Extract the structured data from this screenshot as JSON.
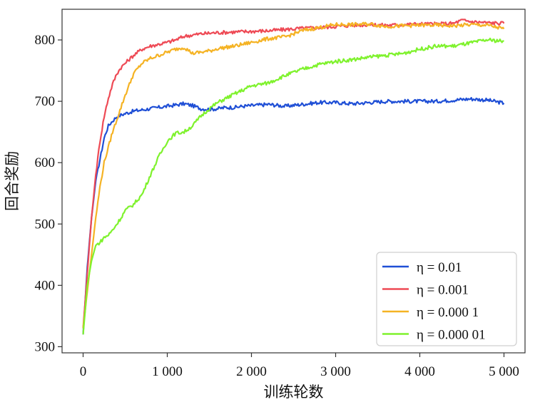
{
  "chart_data": {
    "type": "line",
    "xlabel": "训练轮数",
    "ylabel": "回合奖励",
    "xlim": [
      -250,
      5250
    ],
    "ylim": [
      290,
      850
    ],
    "x_ticks": [
      0,
      1000,
      2000,
      3000,
      4000,
      5000
    ],
    "x_tick_labels": [
      "0",
      "1 000",
      "2 000",
      "3 000",
      "4 000",
      "5 000"
    ],
    "y_ticks": [
      300,
      400,
      500,
      600,
      700,
      800
    ],
    "y_tick_labels": [
      "300",
      "400",
      "500",
      "600",
      "700",
      "800"
    ],
    "grid": false,
    "legend_position": "bottom-right",
    "series": [
      {
        "name": "η = 0.01",
        "color": "#1f4fd6",
        "x": [
          0,
          50,
          100,
          150,
          200,
          250,
          300,
          350,
          400,
          500,
          600,
          700,
          800,
          900,
          1000,
          1100,
          1200,
          1300,
          1400,
          1500,
          1600,
          1700,
          1800,
          1900,
          2000,
          2200,
          2400,
          2600,
          2800,
          3000,
          3200,
          3400,
          3600,
          3800,
          4000,
          4200,
          4400,
          4600,
          4800,
          5000
        ],
        "y": [
          320,
          430,
          510,
          570,
          605,
          640,
          660,
          668,
          675,
          680,
          684,
          686,
          688,
          690,
          692,
          694,
          696,
          693,
          688,
          687,
          688,
          690,
          690,
          692,
          693,
          695,
          692,
          695,
          698,
          698,
          696,
          698,
          700,
          700,
          700,
          700,
          702,
          704,
          702,
          697
        ]
      },
      {
        "name": "η = 0.001",
        "color": "#ee4a55",
        "x": [
          0,
          50,
          100,
          150,
          200,
          250,
          300,
          350,
          400,
          450,
          500,
          600,
          700,
          800,
          900,
          1000,
          1100,
          1200,
          1300,
          1400,
          1500,
          1600,
          1800,
          2000,
          2200,
          2400,
          2600,
          2800,
          3000,
          3200,
          3400,
          3600,
          3800,
          4000,
          4200,
          4400,
          4500,
          4600,
          4800,
          5000
        ],
        "y": [
          330,
          420,
          510,
          580,
          635,
          675,
          705,
          728,
          745,
          755,
          762,
          775,
          785,
          790,
          793,
          796,
          800,
          806,
          808,
          810,
          811,
          812,
          813,
          814,
          815,
          817,
          819,
          820,
          822,
          824,
          825,
          824,
          825,
          826,
          826,
          827,
          832,
          830,
          828,
          827
        ]
      },
      {
        "name": "η = 0.000 1",
        "color": "#f5b324",
        "x": [
          0,
          50,
          100,
          150,
          200,
          250,
          300,
          350,
          400,
          450,
          500,
          600,
          700,
          800,
          900,
          1000,
          1100,
          1200,
          1300,
          1400,
          1500,
          1600,
          1800,
          2000,
          2200,
          2400,
          2600,
          2800,
          3000,
          3200,
          3400,
          3600,
          3800,
          4000,
          4200,
          4400,
          4600,
          4800,
          5000
        ],
        "y": [
          330,
          390,
          450,
          510,
          560,
          600,
          625,
          650,
          670,
          690,
          710,
          745,
          762,
          770,
          775,
          780,
          785,
          788,
          778,
          780,
          782,
          786,
          790,
          796,
          802,
          805,
          815,
          820,
          825,
          825,
          826,
          822,
          823,
          824,
          824,
          823,
          825,
          824,
          818
        ]
      },
      {
        "name": "η = 0.000 01",
        "color": "#7ff22d",
        "x": [
          0,
          50,
          100,
          150,
          200,
          250,
          300,
          350,
          400,
          450,
          500,
          600,
          700,
          800,
          900,
          1000,
          1100,
          1200,
          1300,
          1400,
          1500,
          1600,
          1800,
          2000,
          2200,
          2400,
          2600,
          2800,
          3000,
          3200,
          3400,
          3600,
          3800,
          4000,
          4200,
          4400,
          4600,
          4800,
          5000
        ],
        "y": [
          320,
          400,
          440,
          465,
          470,
          478,
          482,
          490,
          500,
          510,
          522,
          532,
          548,
          580,
          610,
          635,
          648,
          650,
          660,
          676,
          688,
          698,
          712,
          725,
          730,
          742,
          752,
          760,
          765,
          768,
          772,
          775,
          778,
          785,
          790,
          790,
          795,
          800,
          798
        ]
      }
    ]
  }
}
